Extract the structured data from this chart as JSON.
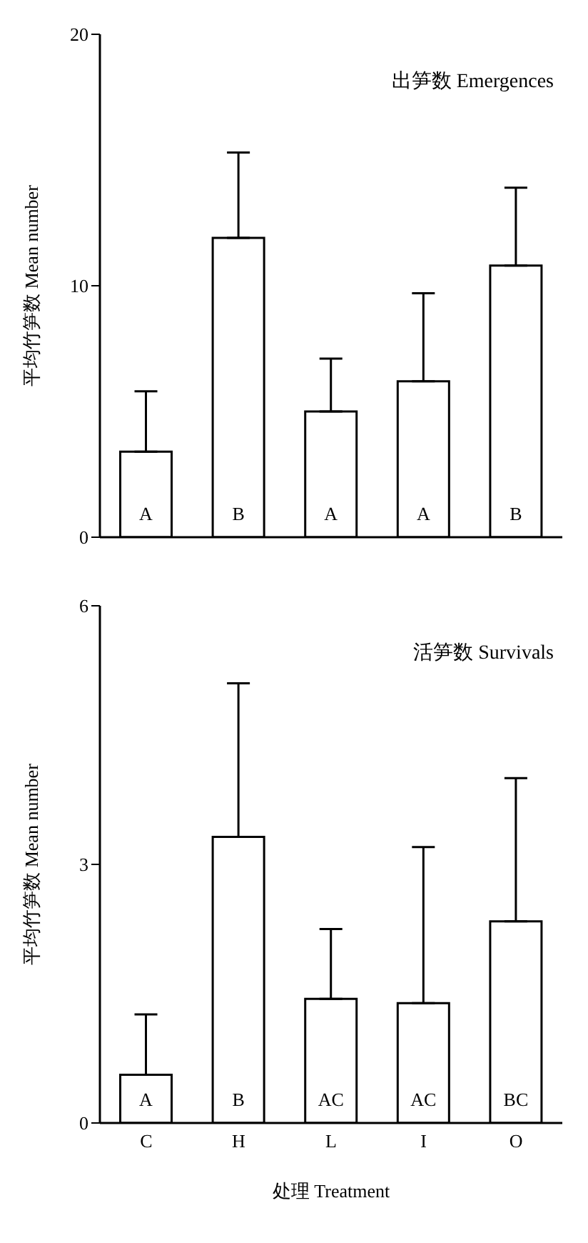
{
  "chart_data": [
    {
      "type": "bar",
      "title": "出笋数 Emergences",
      "ylabel": "平均竹笋数 Mean number",
      "categories": [
        null,
        null,
        null,
        null,
        null
      ],
      "values": [
        3.4,
        11.9,
        5.0,
        6.2,
        10.8
      ],
      "errors": [
        [
          3.4,
          5.8
        ],
        [
          11.9,
          15.3
        ],
        [
          5.0,
          7.1
        ],
        [
          6.2,
          9.7
        ],
        [
          10.8,
          13.9
        ]
      ],
      "color": "#ffffff",
      "ylim": [
        0,
        20
      ],
      "yticks": [
        0,
        10,
        20
      ],
      "grid": false,
      "legend": false,
      "value_labels": [
        "A",
        "B",
        "A",
        "A",
        "B"
      ]
    },
    {
      "type": "bar",
      "title": "活笋数 Survivals",
      "ylabel": "平均竹笋数 Mean number",
      "xlabel": "处理 Treatment",
      "categories": [
        "C",
        "H",
        "L",
        "I",
        "O"
      ],
      "values": [
        0.56,
        3.32,
        1.44,
        1.39,
        2.34
      ],
      "errors": [
        [
          0.56,
          1.26
        ],
        [
          3.32,
          5.1
        ],
        [
          1.44,
          2.25
        ],
        [
          1.39,
          3.2
        ],
        [
          2.34,
          4.0
        ]
      ],
      "color": "#ffffff",
      "ylim": [
        0,
        6
      ],
      "yticks": [
        0,
        3,
        6
      ],
      "grid": false,
      "legend": false,
      "value_labels": [
        "A",
        "B",
        "AC",
        "AC",
        "BC"
      ]
    }
  ]
}
